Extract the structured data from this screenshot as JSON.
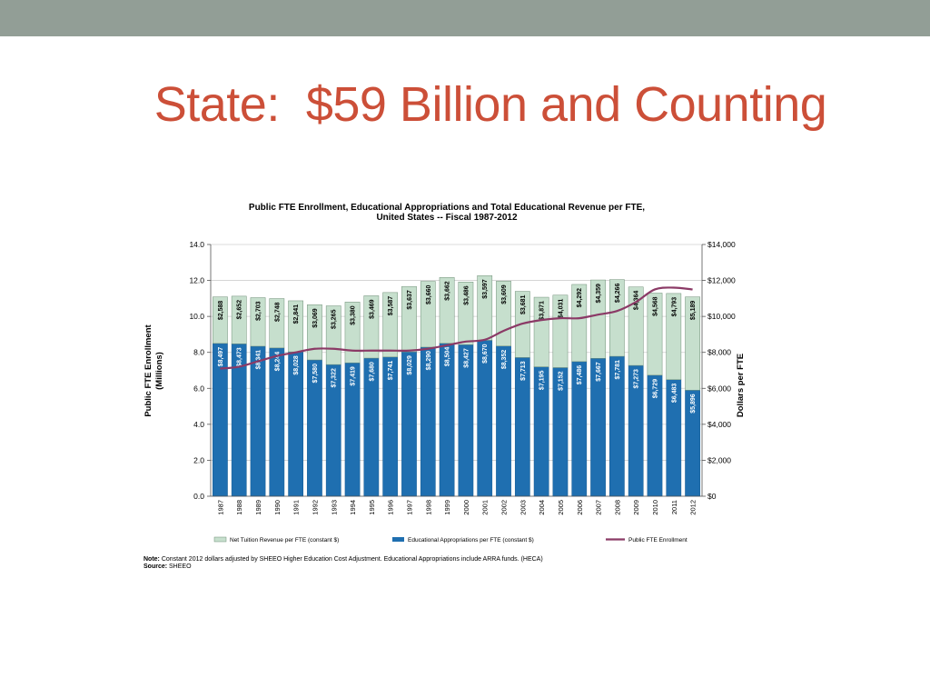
{
  "slide": {
    "title": "State:  $59 Billion and Counting"
  },
  "notes": {
    "note_label": "Note:",
    "note_text": "Constant 2012 dollars adjusted by SHEEO Higher Education Cost Adjustment. Educational Appropriations include ARRA funds. (HECA)",
    "source_label": "Source:",
    "source_text": "SHEEO"
  },
  "colors": {
    "top_band": "#929e96",
    "title": "#cc4f38",
    "tuition": "#c6dfcd",
    "appropriations": "#1f6fb0",
    "enrollment": "#8b3a66"
  },
  "chart_data": {
    "type": "bar",
    "title": [
      "Public FTE Enrollment, Educational Appropriations and Total Educational Revenue per FTE,",
      "United States --  Fiscal 1987-2012"
    ],
    "categories": [
      "1987",
      "1988",
      "1989",
      "1990",
      "1991",
      "1992",
      "1993",
      "1994",
      "1995",
      "1996",
      "1997",
      "1998",
      "1999",
      "2000",
      "2001",
      "2002",
      "2003",
      "2004",
      "2005",
      "2006",
      "2007",
      "2008",
      "2009",
      "2010",
      "2011",
      "2012"
    ],
    "ylabel": [
      "Public FTE Enrollment",
      "(Millions)"
    ],
    "y2label": "Dollars per FTE",
    "ylim": [
      0,
      14
    ],
    "y2lim": [
      0,
      14000
    ],
    "yticks": [
      "0.0",
      "2.0",
      "4.0",
      "6.0",
      "8.0",
      "10.0",
      "12.0",
      "14.0"
    ],
    "y2ticks": [
      "$0",
      "$2,000",
      "$4,000",
      "$6,000",
      "$8,000",
      "$10,000",
      "$12,000",
      "$14,000"
    ],
    "grid": true,
    "legend_position": "bottom",
    "series": [
      {
        "name": "Educational Appropriations per FTE (constant $)",
        "axis": "right",
        "stacked": true,
        "values": [
          8497,
          8473,
          8341,
          8244,
          8028,
          7580,
          7322,
          7419,
          7680,
          7741,
          8029,
          8290,
          8504,
          8427,
          8670,
          8352,
          7713,
          7195,
          7152,
          7486,
          7667,
          7781,
          7273,
          6729,
          6483,
          5896
        ],
        "labels": [
          "$8,497",
          "$8,473",
          "$8,341",
          "$8,244",
          "$8,028",
          "$7,580",
          "$7,322",
          "$7,419",
          "$7,680",
          "$7,741",
          "$8,029",
          "$8,290",
          "$8,504",
          "$8,427",
          "$8,670",
          "$8,352",
          "$7,713",
          "$7,195",
          "$7,152",
          "$7,486",
          "$7,667",
          "$7,781",
          "$7,273",
          "$6,729",
          "$6,483",
          "$5,896"
        ]
      },
      {
        "name": "Net Tuition Revenue per FTE (constant $)",
        "axis": "right",
        "stacked": true,
        "values": [
          2588,
          2652,
          2703,
          2748,
          2841,
          3069,
          3265,
          3380,
          3469,
          3587,
          3637,
          3660,
          3662,
          3486,
          3597,
          3609,
          3681,
          3871,
          4031,
          4292,
          4359,
          4266,
          4364,
          4568,
          4793,
          5189
        ],
        "labels": [
          "$2,588",
          "$2,652",
          "$2,703",
          "$2,748",
          "$2,841",
          "$3,069",
          "$3,265",
          "$3,380",
          "$3,469",
          "$3,587",
          "$3,637",
          "$3,660",
          "$3,662",
          "$3,486",
          "$3,597",
          "$3,609",
          "$3,681",
          "$3,871",
          "$4,031",
          "$4,292",
          "$4,359",
          "$4,266",
          "$4,364",
          "$4,568",
          "$4,793",
          "$5,189"
        ]
      },
      {
        "name": "Public FTE Enrollment",
        "axis": "left",
        "type": "line",
        "values": [
          7.1,
          7.2,
          7.5,
          7.8,
          8.0,
          8.2,
          8.2,
          8.1,
          8.1,
          8.1,
          8.1,
          8.2,
          8.4,
          8.6,
          8.7,
          9.2,
          9.6,
          9.8,
          9.9,
          9.9,
          10.1,
          10.3,
          10.8,
          11.5,
          11.6,
          11.5
        ]
      }
    ]
  }
}
